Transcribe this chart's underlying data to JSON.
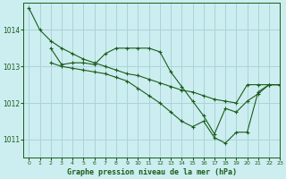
{
  "title": "Graphe pression niveau de la mer (hPa)",
  "background_color": "#cceef0",
  "grid_color": "#aad4d8",
  "line_color": "#1a5c1a",
  "xlim": [
    -0.5,
    23
  ],
  "ylim": [
    1010.5,
    1014.75
  ],
  "yticks": [
    1011,
    1012,
    1013,
    1014
  ],
  "xticks": [
    0,
    1,
    2,
    3,
    4,
    5,
    6,
    7,
    8,
    9,
    10,
    11,
    12,
    13,
    14,
    15,
    16,
    17,
    18,
    19,
    20,
    21,
    22,
    23
  ],
  "series1_x": [
    0,
    1,
    2,
    3,
    4,
    5,
    6,
    7,
    8,
    9,
    10,
    11,
    12,
    13,
    14,
    15,
    16,
    17,
    18,
    19,
    20,
    21,
    22,
    23
  ],
  "series1_y": [
    1014.6,
    1014.0,
    1013.7,
    1013.5,
    1013.35,
    1013.2,
    1013.1,
    1013.0,
    1012.9,
    1012.8,
    1012.75,
    1012.65,
    1012.55,
    1012.45,
    1012.35,
    1012.3,
    1012.2,
    1012.1,
    1012.05,
    1012.0,
    1012.5,
    1012.5,
    1012.5,
    1012.5
  ],
  "series2_x": [
    2,
    3,
    4,
    5,
    6,
    7,
    8,
    9,
    10,
    11,
    12,
    13,
    14,
    15,
    16,
    17,
    18,
    19,
    20,
    21,
    22,
    23
  ],
  "series2_y": [
    1013.5,
    1013.05,
    1013.1,
    1013.1,
    1013.05,
    1013.35,
    1013.5,
    1013.5,
    1013.5,
    1013.5,
    1013.4,
    1012.85,
    1012.45,
    1012.05,
    1011.65,
    1011.15,
    1011.85,
    1011.75,
    1012.05,
    1012.25,
    1012.5,
    1012.5
  ],
  "series3_x": [
    2,
    3,
    4,
    5,
    6,
    7,
    8,
    9,
    10,
    11,
    12,
    13,
    14,
    15,
    16,
    17,
    18,
    19,
    20,
    21,
    22,
    23
  ],
  "series3_y": [
    1013.1,
    1013.0,
    1012.95,
    1012.9,
    1012.85,
    1012.8,
    1012.7,
    1012.6,
    1012.4,
    1012.2,
    1012.0,
    1011.75,
    1011.5,
    1011.35,
    1011.5,
    1011.05,
    1010.9,
    1011.2,
    1011.2,
    1012.3,
    1012.5,
    1012.5
  ]
}
